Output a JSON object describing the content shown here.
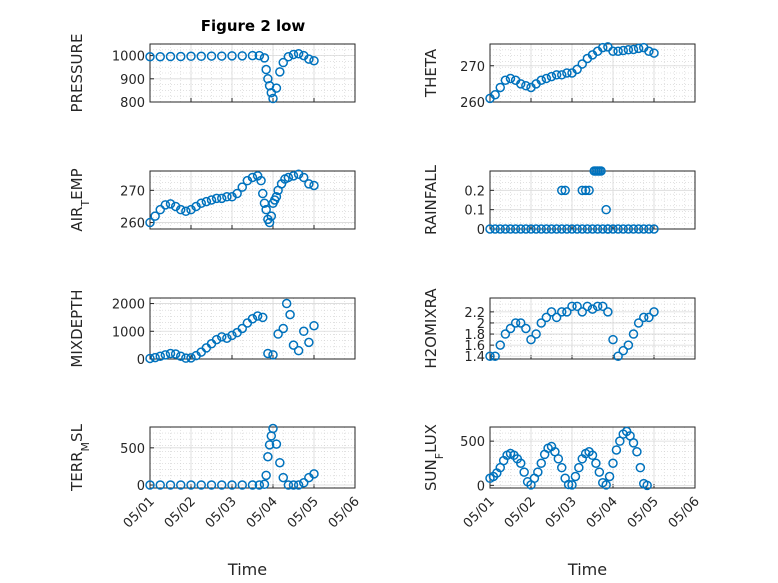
{
  "figure": {
    "title": "Figure 2 low",
    "marker_color": "#0072BD"
  },
  "chart_data": [
    {
      "type": "scatter",
      "ylabel": "PRESSURE",
      "xlabel": "",
      "xlim": [
        "05/01",
        "05/06"
      ],
      "xticks": [
        "05/01",
        "05/02",
        "05/03",
        "05/04",
        "05/05",
        "05/06"
      ],
      "show_xticklabels": false,
      "ylim": [
        800,
        1050
      ],
      "yticks": [
        800,
        900,
        1000
      ],
      "x": [
        "05/01",
        "05/01 06:00",
        "05/01 12:00",
        "05/01 18:00",
        "05/02",
        "05/02 06:00",
        "05/02 12:00",
        "05/02 18:00",
        "05/03",
        "05/03 06:00",
        "05/03 12:00",
        "05/03 16:00",
        "05/03 19:00",
        "05/03 20:00",
        "05/03 21:00",
        "05/03 22:00",
        "05/03 23:00",
        "05/04",
        "05/04 02:00",
        "05/04 04:00",
        "05/04 06:00",
        "05/04 09:00",
        "05/04 12:00",
        "05/04 15:00",
        "05/04 18:00",
        "05/04 21:00",
        "05/05"
      ],
      "y": [
        995,
        995,
        996,
        996,
        997,
        997,
        998,
        998,
        999,
        999,
        1000,
        1000,
        990,
        940,
        900,
        870,
        840,
        815,
        860,
        930,
        970,
        995,
        1005,
        1008,
        1000,
        985,
        978
      ]
    },
    {
      "type": "scatter",
      "ylabel": "THETA",
      "xlabel": "",
      "xlim": [
        "05/01",
        "05/06"
      ],
      "xticks": [
        "05/01",
        "05/02",
        "05/03",
        "05/04",
        "05/05",
        "05/06"
      ],
      "show_xticklabels": false,
      "ylim": [
        260,
        276
      ],
      "yticks": [
        260,
        270
      ],
      "x": [
        "05/01",
        "05/01 03:00",
        "05/01 06:00",
        "05/01 09:00",
        "05/01 12:00",
        "05/01 15:00",
        "05/01 18:00",
        "05/01 21:00",
        "05/02",
        "05/02 03:00",
        "05/02 06:00",
        "05/02 09:00",
        "05/02 12:00",
        "05/02 15:00",
        "05/02 18:00",
        "05/02 21:00",
        "05/03",
        "05/03 03:00",
        "05/03 06:00",
        "05/03 09:00",
        "05/03 12:00",
        "05/03 15:00",
        "05/03 18:00",
        "05/03 21:00",
        "05/04",
        "05/04 03:00",
        "05/04 06:00",
        "05/04 09:00",
        "05/04 12:00",
        "05/04 15:00",
        "05/04 18:00",
        "05/04 21:00",
        "05/05"
      ],
      "y": [
        261,
        262,
        264,
        266,
        266.5,
        266,
        265,
        264.5,
        264,
        265,
        266,
        266.5,
        267,
        267.5,
        267.5,
        268,
        268,
        269,
        270.5,
        272,
        273,
        274,
        275,
        275.2,
        274,
        274,
        274.2,
        274.4,
        274.5,
        274.8,
        275,
        274,
        273.5
      ]
    },
    {
      "type": "scatter",
      "ylabel": "AIR_T_EMP",
      "xlabel": "",
      "xlim": [
        "05/01",
        "05/06"
      ],
      "xticks": [
        "05/01",
        "05/02",
        "05/03",
        "05/04",
        "05/05",
        "05/06"
      ],
      "show_xticklabels": false,
      "ylim": [
        258,
        276
      ],
      "yticks": [
        260,
        270
      ],
      "x": [
        "05/01",
        "05/01 03:00",
        "05/01 06:00",
        "05/01 09:00",
        "05/01 12:00",
        "05/01 15:00",
        "05/01 18:00",
        "05/01 21:00",
        "05/02",
        "05/02 03:00",
        "05/02 06:00",
        "05/02 09:00",
        "05/02 12:00",
        "05/02 15:00",
        "05/02 18:00",
        "05/02 21:00",
        "05/03",
        "05/03 03:00",
        "05/03 06:00",
        "05/03 09:00",
        "05/03 12:00",
        "05/03 15:00",
        "05/03 17:00",
        "05/03 18:00",
        "05/03 19:00",
        "05/03 20:00",
        "05/03 21:00",
        "05/03 22:00",
        "05/03 23:00",
        "05/04",
        "05/04 01:00",
        "05/04 02:00",
        "05/04 03:00",
        "05/04 05:00",
        "05/04 07:00",
        "05/04 09:00",
        "05/04 12:00",
        "05/04 15:00",
        "05/04 18:00",
        "05/04 21:00",
        "05/05"
      ],
      "y": [
        260,
        262,
        264,
        265.5,
        265.8,
        265,
        264,
        263.5,
        264,
        265,
        266,
        266.5,
        267,
        267.5,
        267.5,
        268,
        268,
        269,
        271,
        273,
        274,
        274.5,
        273,
        269,
        266,
        264,
        261,
        260,
        262,
        266,
        267,
        268,
        270,
        272,
        273.5,
        274,
        274.5,
        275,
        274,
        272,
        271.5
      ]
    },
    {
      "type": "scatter",
      "ylabel": "RAINFALL",
      "xlabel": "",
      "xlim": [
        "05/01",
        "05/06"
      ],
      "xticks": [
        "05/01",
        "05/02",
        "05/03",
        "05/04",
        "05/05",
        "05/06"
      ],
      "show_xticklabels": false,
      "ylim": [
        0,
        0.3
      ],
      "yticks": [
        0,
        0.1,
        0.2
      ],
      "x": [
        "05/01",
        "05/01 03:00",
        "05/01 06:00",
        "05/01 09:00",
        "05/01 12:00",
        "05/01 15:00",
        "05/01 18:00",
        "05/01 21:00",
        "05/02",
        "05/02 03:00",
        "05/02 06:00",
        "05/02 09:00",
        "05/02 12:00",
        "05/02 15:00",
        "05/02 18:00",
        "05/02 21:00",
        "05/03",
        "05/03 03:00",
        "05/03 06:00",
        "05/03 09:00",
        "05/03 12:00",
        "05/03 15:00",
        "05/03 18:00",
        "05/03 21:00",
        "05/04",
        "05/04 03:00",
        "05/04 06:00",
        "05/04 09:00",
        "05/04 12:00",
        "05/04 15:00",
        "05/04 18:00",
        "05/04 21:00",
        "05/05",
        "05/02 18:00",
        "05/02 20:00",
        "05/03 06:00",
        "05/03 08:00",
        "05/03 10:00",
        "05/03 13:00",
        "05/03 14:00",
        "05/03 15:00",
        "05/03 16:00",
        "05/03 17:00",
        "05/03 20:00",
        "05/03 21:00"
      ],
      "y": [
        0,
        0,
        0,
        0,
        0,
        0,
        0,
        0,
        0,
        0,
        0,
        0,
        0,
        0,
        0,
        0,
        0,
        0,
        0,
        0,
        0,
        0,
        0,
        0,
        0,
        0,
        0,
        0,
        0,
        0,
        0,
        0,
        0,
        0.2,
        0.2,
        0.2,
        0.2,
        0.2,
        0.3,
        0.3,
        0.3,
        0.3,
        0.3,
        0.1,
        0
      ]
    },
    {
      "type": "scatter",
      "ylabel": "MIXDEPTH",
      "xlabel": "",
      "xlim": [
        "05/01",
        "05/06"
      ],
      "xticks": [
        "05/01",
        "05/02",
        "05/03",
        "05/04",
        "05/05",
        "05/06"
      ],
      "show_xticklabels": false,
      "ylim": [
        0,
        2200
      ],
      "yticks": [
        0,
        1000,
        2000
      ],
      "x": [
        "05/01",
        "05/01 03:00",
        "05/01 06:00",
        "05/01 09:00",
        "05/01 12:00",
        "05/01 15:00",
        "05/01 18:00",
        "05/01 21:00",
        "05/02",
        "05/02 03:00",
        "05/02 06:00",
        "05/02 09:00",
        "05/02 12:00",
        "05/02 15:00",
        "05/02 18:00",
        "05/02 21:00",
        "05/03",
        "05/03 03:00",
        "05/03 06:00",
        "05/03 09:00",
        "05/03 12:00",
        "05/03 15:00",
        "05/03 18:00",
        "05/03 21:00",
        "05/04",
        "05/04 03:00",
        "05/04 06:00",
        "05/04 08:00",
        "05/04 10:00",
        "05/04 12:00",
        "05/04 15:00",
        "05/04 18:00",
        "05/04 21:00",
        "05/05"
      ],
      "y": [
        20,
        50,
        100,
        150,
        200,
        180,
        100,
        30,
        40,
        120,
        250,
        400,
        550,
        700,
        800,
        750,
        850,
        950,
        1100,
        1300,
        1450,
        1550,
        1500,
        200,
        150,
        900,
        1100,
        2000,
        1600,
        500,
        300,
        1000,
        600,
        1200
      ]
    },
    {
      "type": "scatter",
      "ylabel": "H2OMIXRA",
      "xlabel": "",
      "xlim": [
        "05/01",
        "05/06"
      ],
      "xticks": [
        "05/01",
        "05/02",
        "05/03",
        "05/04",
        "05/05",
        "05/06"
      ],
      "show_xticklabels": false,
      "ylim": [
        1.35,
        2.45
      ],
      "yticks": [
        1.4,
        1.6,
        1.8,
        2,
        2.2
      ],
      "x": [
        "05/01",
        "05/01 03:00",
        "05/01 06:00",
        "05/01 09:00",
        "05/01 12:00",
        "05/01 15:00",
        "05/01 18:00",
        "05/01 21:00",
        "05/02",
        "05/02 03:00",
        "05/02 06:00",
        "05/02 09:00",
        "05/02 12:00",
        "05/02 15:00",
        "05/02 18:00",
        "05/02 21:00",
        "05/03",
        "05/03 03:00",
        "05/03 06:00",
        "05/03 09:00",
        "05/03 12:00",
        "05/03 15:00",
        "05/03 18:00",
        "05/03 21:00",
        "05/04",
        "05/04 03:00",
        "05/04 06:00",
        "05/04 09:00",
        "05/04 12:00",
        "05/04 15:00",
        "05/04 18:00",
        "05/04 21:00",
        "05/05"
      ],
      "y": [
        1.4,
        1.4,
        1.6,
        1.8,
        1.9,
        2.0,
        2.0,
        1.9,
        1.7,
        1.8,
        2.0,
        2.1,
        2.2,
        2.1,
        2.2,
        2.2,
        2.3,
        2.3,
        2.2,
        2.3,
        2.25,
        2.3,
        2.3,
        2.2,
        1.7,
        1.4,
        1.5,
        1.6,
        1.8,
        2.0,
        2.1,
        2.1,
        2.2
      ]
    },
    {
      "type": "scatter",
      "ylabel": "TERR_M_SL",
      "xlabel": "Time",
      "xlim": [
        "05/01",
        "05/06"
      ],
      "xticks": [
        "05/01",
        "05/02",
        "05/03",
        "05/04",
        "05/05",
        "05/06"
      ],
      "show_xticklabels": true,
      "ylim": [
        -40,
        780
      ],
      "yticks": [
        0,
        500
      ],
      "x": [
        "05/01",
        "05/01 06:00",
        "05/01 12:00",
        "05/01 18:00",
        "05/02",
        "05/02 06:00",
        "05/02 12:00",
        "05/02 18:00",
        "05/03",
        "05/03 06:00",
        "05/03 12:00",
        "05/03 16:00",
        "05/03 19:00",
        "05/03 20:00",
        "05/03 21:00",
        "05/03 22:00",
        "05/03 23:00",
        "05/04",
        "05/04 02:00",
        "05/04 04:00",
        "05/04 06:00",
        "05/04 09:00",
        "05/04 12:00",
        "05/04 15:00",
        "05/04 18:00",
        "05/04 21:00",
        "05/05"
      ],
      "y": [
        0,
        0,
        0,
        0,
        0,
        0,
        0,
        0,
        0,
        0,
        0,
        0,
        10,
        130,
        380,
        540,
        660,
        760,
        550,
        300,
        100,
        0,
        0,
        0,
        30,
        100,
        150
      ]
    },
    {
      "type": "scatter",
      "ylabel": "SUN_F_LUX",
      "xlabel": "Time",
      "xlim": [
        "05/01",
        "05/06"
      ],
      "xticks": [
        "05/01",
        "05/02",
        "05/03",
        "05/04",
        "05/05",
        "05/06"
      ],
      "show_xticklabels": true,
      "ylim": [
        -30,
        660
      ],
      "yticks": [
        0,
        500
      ],
      "x": [
        "05/01",
        "05/01 02:00",
        "05/01 04:00",
        "05/01 06:00",
        "05/01 08:00",
        "05/01 10:00",
        "05/01 12:00",
        "05/01 14:00",
        "05/01 16:00",
        "05/01 18:00",
        "05/01 20:00",
        "05/01 22:00",
        "05/02",
        "05/02 02:00",
        "05/02 04:00",
        "05/02 06:00",
        "05/02 08:00",
        "05/02 10:00",
        "05/02 12:00",
        "05/02 14:00",
        "05/02 16:00",
        "05/02 18:00",
        "05/02 20:00",
        "05/02 22:00",
        "05/03",
        "05/03 02:00",
        "05/03 04:00",
        "05/03 06:00",
        "05/03 08:00",
        "05/03 10:00",
        "05/03 12:00",
        "05/03 14:00",
        "05/03 16:00",
        "05/03 18:00",
        "05/03 20:00",
        "05/03 22:00",
        "05/04",
        "05/04 02:00",
        "05/04 04:00",
        "05/04 06:00",
        "05/04 08:00",
        "05/04 10:00",
        "05/04 12:00",
        "05/04 14:00",
        "05/04 16:00",
        "05/04 18:00",
        "05/04 20:00"
      ],
      "y": [
        80,
        100,
        140,
        200,
        280,
        340,
        360,
        340,
        300,
        250,
        150,
        40,
        5,
        80,
        150,
        250,
        350,
        420,
        440,
        380,
        300,
        200,
        80,
        10,
        5,
        100,
        200,
        300,
        360,
        380,
        340,
        250,
        150,
        30,
        5,
        100,
        250,
        400,
        500,
        580,
        610,
        560,
        480,
        380,
        200,
        20,
        0
      ]
    }
  ]
}
